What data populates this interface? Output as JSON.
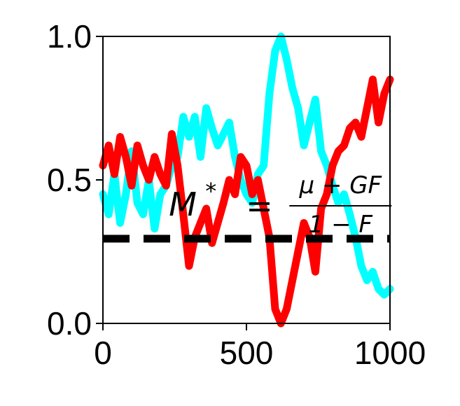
{
  "chart_data": {
    "type": "line",
    "xlim": [
      0,
      1000
    ],
    "ylim": [
      0,
      1
    ],
    "x_ticks": [
      0,
      500,
      1000
    ],
    "y_ticks": [
      0.0,
      0.5,
      1.0
    ],
    "x_tick_labels": [
      "0",
      "500",
      "1000"
    ],
    "y_tick_labels": [
      "0.0",
      "0.5",
      "1.0"
    ],
    "grid": false,
    "legend": "none",
    "annotation": {
      "lhs": "M",
      "sup": "*",
      "eq": "=",
      "numerator": "μ + GF",
      "denominator": "1 − F",
      "x": 230,
      "y": 0.4
    },
    "hline": {
      "y": 0.295,
      "color": "#000000",
      "style": "dashed"
    },
    "series": [
      {
        "color": "#00ffff",
        "x": [
          0,
          20,
          40,
          60,
          80,
          100,
          120,
          140,
          160,
          180,
          200,
          220,
          240,
          260,
          280,
          300,
          320,
          340,
          360,
          380,
          400,
          420,
          440,
          460,
          480,
          500,
          520,
          540,
          560,
          580,
          600,
          620,
          640,
          660,
          680,
          700,
          720,
          740,
          760,
          780,
          800,
          820,
          840,
          860,
          880,
          900,
          920,
          940,
          960,
          980,
          1000
        ],
        "values": [
          0.45,
          0.38,
          0.52,
          0.35,
          0.45,
          0.6,
          0.42,
          0.38,
          0.5,
          0.33,
          0.45,
          0.48,
          0.55,
          0.58,
          0.72,
          0.65,
          0.72,
          0.58,
          0.75,
          0.68,
          0.62,
          0.66,
          0.7,
          0.58,
          0.5,
          0.45,
          0.42,
          0.52,
          0.55,
          0.8,
          0.95,
          1.0,
          0.92,
          0.82,
          0.75,
          0.62,
          0.7,
          0.78,
          0.6,
          0.55,
          0.48,
          0.42,
          0.45,
          0.38,
          0.3,
          0.2,
          0.15,
          0.18,
          0.12,
          0.1,
          0.12
        ]
      },
      {
        "color": "#ff0000",
        "x": [
          0,
          20,
          40,
          60,
          80,
          100,
          120,
          140,
          160,
          180,
          200,
          220,
          240,
          260,
          280,
          300,
          320,
          340,
          360,
          380,
          400,
          420,
          440,
          460,
          480,
          500,
          520,
          540,
          560,
          580,
          600,
          620,
          640,
          660,
          680,
          700,
          720,
          740,
          760,
          780,
          800,
          820,
          840,
          860,
          880,
          900,
          920,
          940,
          960,
          980,
          1000
        ],
        "values": [
          0.55,
          0.62,
          0.52,
          0.65,
          0.58,
          0.48,
          0.62,
          0.55,
          0.5,
          0.58,
          0.52,
          0.48,
          0.66,
          0.55,
          0.38,
          0.2,
          0.3,
          0.35,
          0.4,
          0.28,
          0.35,
          0.42,
          0.5,
          0.45,
          0.58,
          0.55,
          0.45,
          0.5,
          0.4,
          0.3,
          0.05,
          0.0,
          0.05,
          0.15,
          0.25,
          0.35,
          0.3,
          0.18,
          0.4,
          0.45,
          0.55,
          0.6,
          0.62,
          0.68,
          0.7,
          0.65,
          0.75,
          0.85,
          0.7,
          0.8,
          0.85
        ]
      }
    ]
  }
}
